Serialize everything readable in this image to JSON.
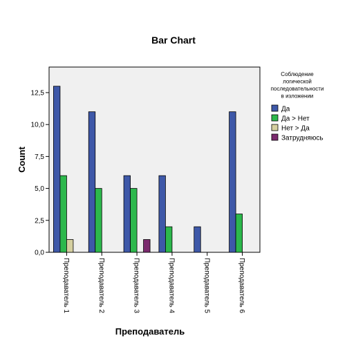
{
  "chart_data": {
    "type": "bar",
    "title": "Bar Chart",
    "xlabel": "Преподаватель",
    "ylabel": "Count",
    "categories": [
      "Преподаватель 1",
      "Преподаватель 2",
      "Преподаватель 3",
      "Преподаватель 4",
      "Преподаватель 5",
      "Преподаватель 6"
    ],
    "ylim": [
      0,
      14.5
    ],
    "yticks": [
      "0,0",
      "2,5",
      "5,0",
      "7,5",
      "10,0",
      "12,5"
    ],
    "ytick_values": [
      0,
      2.5,
      5,
      7.5,
      10,
      12.5
    ],
    "grid": false,
    "legend": {
      "placement": "right",
      "title_lines": [
        "Соблюдение",
        "логической",
        "последовательности",
        "в изложении"
      ]
    },
    "series": [
      {
        "name": "Да",
        "color": "#3E58A8",
        "values": [
          13,
          11,
          6,
          6,
          2,
          11
        ]
      },
      {
        "name": "Да > Нет",
        "color": "#2DB84C",
        "values": [
          6,
          5,
          5,
          2,
          0,
          3
        ]
      },
      {
        "name": "Нет > Да",
        "color": "#D5CFA0",
        "values": [
          1,
          0,
          0,
          0,
          0,
          0
        ]
      },
      {
        "name": "Затрудняюсь",
        "color": "#7B2A6E",
        "values": [
          0,
          0,
          1,
          0,
          0,
          0
        ]
      }
    ]
  }
}
